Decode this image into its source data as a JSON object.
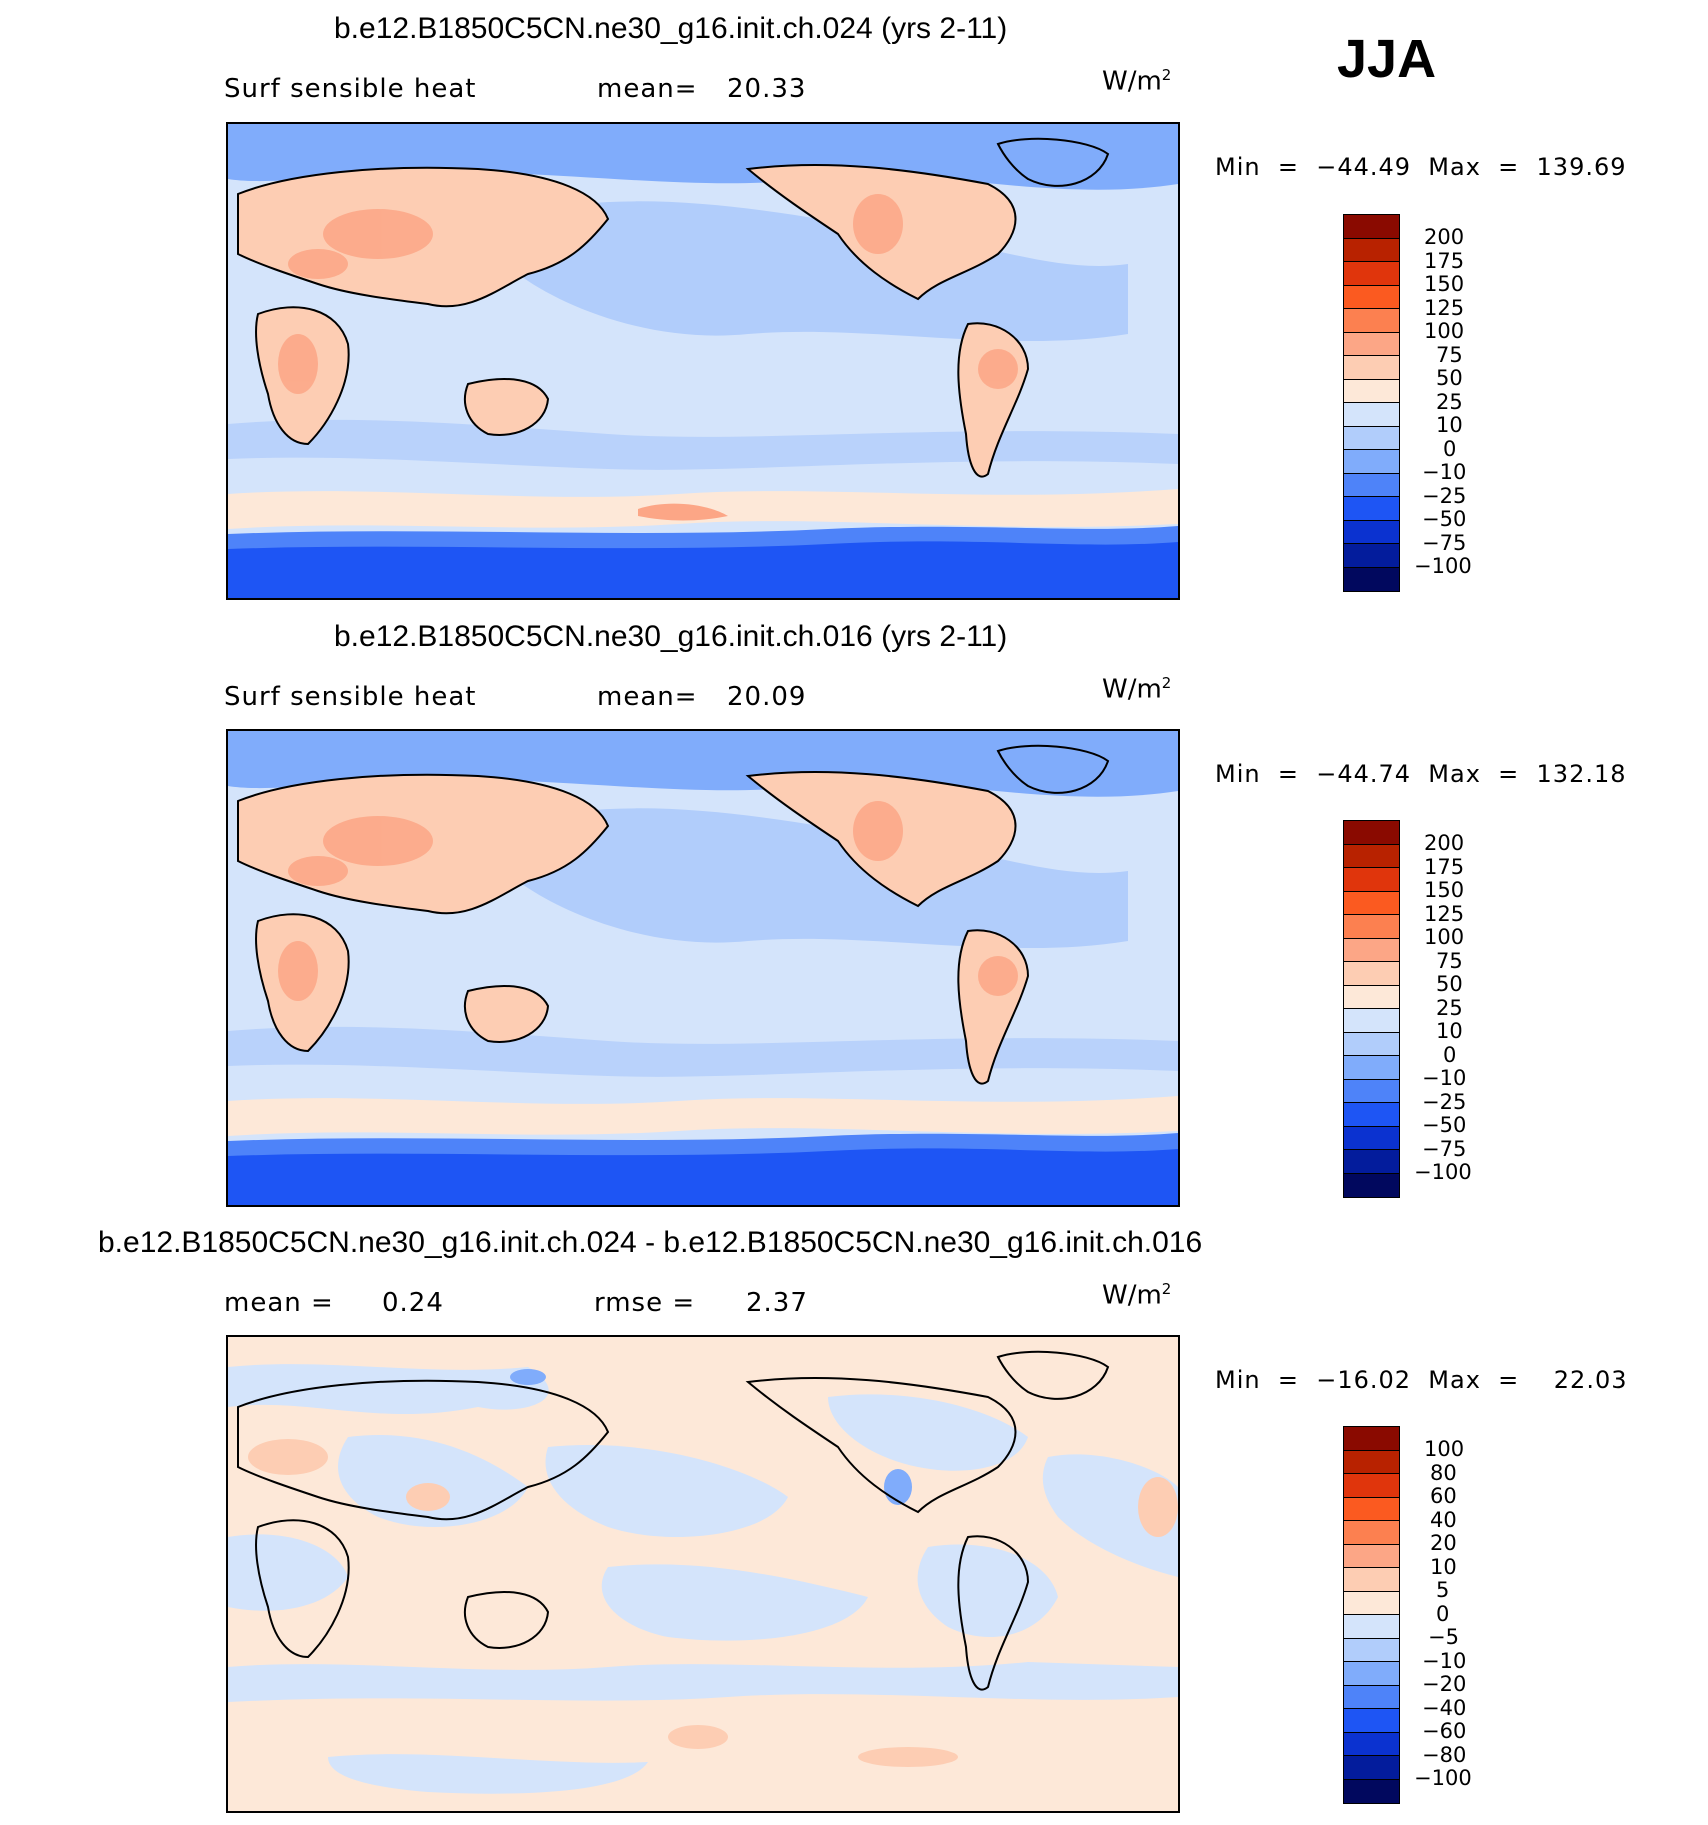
{
  "season": "JJA",
  "panels": [
    {
      "title": "b.e12.B1850C5CN.ne30_g16.init.ch.024 (yrs 2-11)",
      "left_text": "Surf  sensible  heat",
      "stat_label": "mean=",
      "stat_value": "20.33",
      "stat2_label": "",
      "stat2_value": "",
      "units": "W/m",
      "units_sup": "2",
      "minmax": "Min  =  −44.49  Max  =  139.69",
      "colorbar_labels": [
        "200",
        "175",
        "150",
        "125",
        "100",
        "75",
        "50",
        "25",
        "10",
        "0",
        "−10",
        "−25",
        "−50",
        "−75",
        "−100"
      ]
    },
    {
      "title": "b.e12.B1850C5CN.ne30_g16.init.ch.016 (yrs 2-11)",
      "left_text": "Surf  sensible  heat",
      "stat_label": "mean=",
      "stat_value": "20.09",
      "stat2_label": "",
      "stat2_value": "",
      "units": "W/m",
      "units_sup": "2",
      "minmax": "Min  =  −44.74  Max  =  132.18",
      "colorbar_labels": [
        "200",
        "175",
        "150",
        "125",
        "100",
        "75",
        "50",
        "25",
        "10",
        "0",
        "−10",
        "−25",
        "−50",
        "−75",
        "−100"
      ]
    },
    {
      "title": "b.e12.B1850C5CN.ne30_g16.init.ch.024 - b.e12.B1850C5CN.ne30_g16.init.ch.016",
      "left_text": "mean  =",
      "stat_label": "",
      "stat_value": "0.24",
      "stat2_label": "rmse  =",
      "stat2_value": "2.37",
      "units": "W/m",
      "units_sup": "2",
      "minmax": "Min  =  −16.02  Max  =    22.03",
      "colorbar_labels": [
        "100",
        "80",
        "60",
        "40",
        "20",
        "10",
        "5",
        "0",
        "−5",
        "−10",
        "−20",
        "−40",
        "−60",
        "−80",
        "−100"
      ]
    }
  ],
  "colorbar_colors": [
    "#8a0a00",
    "#b82200",
    "#e0350c",
    "#fb5a20",
    "#fc8050",
    "#fca686",
    "#fdcdb3",
    "#fde8d8",
    "#d4e4fb",
    "#b1cdfb",
    "#80acfb",
    "#4e83f9",
    "#1e55f4",
    "#0b32d0",
    "#031c9c",
    "#01085e"
  ],
  "map_colors": {
    "ocean_neutral": "#d4e4fb",
    "ocean_cool": "#b1cdfb",
    "cold": "#80acfb",
    "antarctic": "#1e55f4",
    "land_warm": "#fdcdb3",
    "land_hot": "#fca686",
    "diff_pos": "#fde8d8",
    "diff_neg": "#d4e4fb"
  }
}
